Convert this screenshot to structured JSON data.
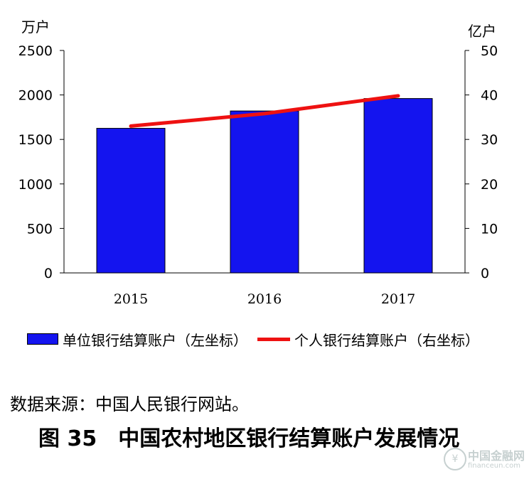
{
  "chart_data": {
    "type": "bar",
    "categories": [
      "2015",
      "2016",
      "2017"
    ],
    "series": [
      {
        "name": "单位银行结算账户（左坐标）",
        "type": "bar",
        "axis": "left",
        "color": "#1414ef",
        "values": [
          1625,
          1820,
          1960
        ]
      },
      {
        "name": "个人银行结算账户（右坐标）",
        "type": "line",
        "axis": "right",
        "color": "#ee1111",
        "values": [
          33,
          35.8,
          39.8
        ]
      }
    ],
    "y_left": {
      "unit": "万户",
      "min": 0,
      "max": 2500,
      "ticks": [
        0,
        500,
        1000,
        1500,
        2000,
        2500
      ]
    },
    "y_right": {
      "unit": "亿户",
      "min": 0,
      "max": 50,
      "ticks": [
        0,
        10,
        20,
        30,
        40,
        50
      ]
    },
    "grid": false,
    "legend_position": "bottom"
  },
  "source_note": "数据来源：中国人民银行网站。",
  "figure_caption": "图 35　中国农村地区银行结算账户发展情况",
  "watermark": {
    "logo": "中国金融网",
    "url": "financeun.com",
    "icon": "coin-icon"
  }
}
